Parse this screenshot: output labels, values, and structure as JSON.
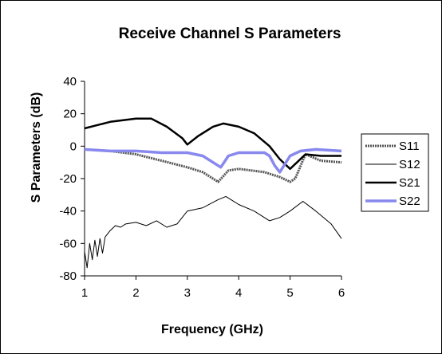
{
  "chart_data": {
    "type": "line",
    "title": "Receive Channel S Parameters",
    "xlabel": "Frequency (GHz)",
    "ylabel": "S Parameters (dB)",
    "xlim": [
      1,
      6
    ],
    "ylim": [
      -80,
      40
    ],
    "x_ticks": [
      "1",
      "2",
      "3",
      "4",
      "5",
      "6"
    ],
    "y_ticks": [
      "-80",
      "-60",
      "-40",
      "-20",
      "0",
      "20",
      "40"
    ],
    "grid": false,
    "legend": "right",
    "series": [
      {
        "name": "S11",
        "color": "#555555",
        "style": "thick-dashed",
        "x": [
          1.0,
          1.5,
          2.0,
          2.5,
          3.0,
          3.3,
          3.6,
          3.8,
          4.0,
          4.5,
          4.8,
          5.0,
          5.1,
          5.3,
          5.6,
          6.0
        ],
        "y": [
          -2,
          -3,
          -5,
          -9,
          -13,
          -16,
          -22,
          -15,
          -14,
          -16,
          -19,
          -22,
          -20,
          -5,
          -9,
          -10
        ]
      },
      {
        "name": "S12",
        "color": "#000000",
        "style": "thin",
        "x": [
          1.0,
          1.05,
          1.1,
          1.15,
          1.2,
          1.25,
          1.3,
          1.35,
          1.4,
          1.5,
          1.6,
          1.7,
          1.8,
          2.0,
          2.2,
          2.4,
          2.6,
          2.8,
          3.0,
          3.3,
          3.6,
          3.75,
          4.0,
          4.3,
          4.6,
          4.8,
          5.0,
          5.25,
          5.5,
          5.8,
          6.0
        ],
        "y": [
          -65,
          -75,
          -60,
          -70,
          -58,
          -68,
          -57,
          -66,
          -56,
          -52,
          -49,
          -50,
          -48,
          -47,
          -49,
          -46,
          -50,
          -48,
          -40,
          -38,
          -33,
          -31,
          -36,
          -40,
          -46,
          -44,
          -40,
          -34,
          -40,
          -48,
          -57
        ]
      },
      {
        "name": "S21",
        "color": "#000000",
        "style": "thick",
        "x": [
          1.0,
          1.5,
          2.0,
          2.3,
          2.6,
          2.9,
          3.0,
          3.2,
          3.5,
          3.7,
          4.0,
          4.3,
          4.6,
          4.8,
          5.0,
          5.3,
          5.6,
          6.0
        ],
        "y": [
          11,
          15,
          17,
          17,
          12,
          5,
          1,
          6,
          12,
          14,
          12,
          8,
          0,
          -8,
          -14,
          -5,
          -6,
          -6
        ]
      },
      {
        "name": "S22",
        "color": "#8888ee",
        "style": "thick",
        "x": [
          1.0,
          1.5,
          2.0,
          2.5,
          3.0,
          3.3,
          3.55,
          3.65,
          3.8,
          4.0,
          4.5,
          4.6,
          4.7,
          4.8,
          5.0,
          5.2,
          5.5,
          6.0
        ],
        "y": [
          -2,
          -3,
          -3,
          -4,
          -4,
          -6,
          -11,
          -13,
          -6,
          -4,
          -4,
          -6,
          -12,
          -16,
          -6,
          -3,
          -2,
          -3
        ]
      }
    ]
  }
}
